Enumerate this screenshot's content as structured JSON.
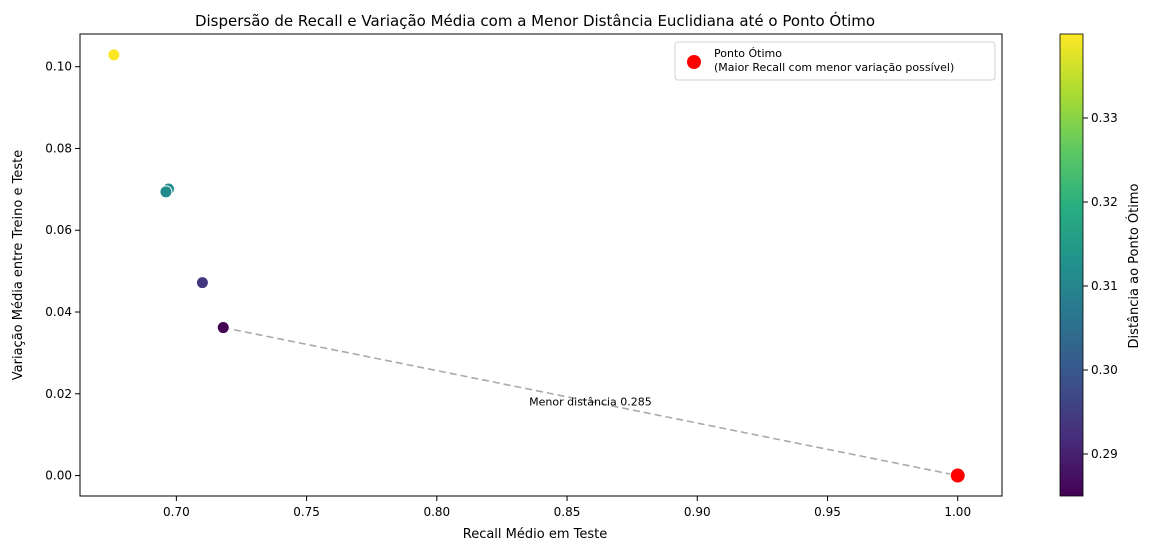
{
  "chart_data": {
    "type": "scatter",
    "title": "Dispersão de Recall e Variação Média com a Menor Distância Euclidiana até o Ponto Ótimo",
    "xlabel": "Recall Médio em Teste",
    "ylabel": "Variação Média entre Treino e Teste",
    "xlim": [
      0.663,
      1.017
    ],
    "ylim": [
      -0.005,
      0.108
    ],
    "x_ticks": [
      0.7,
      0.75,
      0.8,
      0.85,
      0.9,
      0.95,
      1.0
    ],
    "x_tick_labels": [
      "0.70",
      "0.75",
      "0.80",
      "0.85",
      "0.90",
      "0.95",
      "1.00"
    ],
    "y_ticks": [
      0.0,
      0.02,
      0.04,
      0.06,
      0.08,
      0.1
    ],
    "y_tick_labels": [
      "0.00",
      "0.02",
      "0.04",
      "0.06",
      "0.08",
      "0.10"
    ],
    "grid": false,
    "points": [
      {
        "x": 0.676,
        "y": 0.1029,
        "distance": 0.34
      },
      {
        "x": 0.697,
        "y": 0.0701,
        "distance": 0.312
      },
      {
        "x": 0.696,
        "y": 0.0694,
        "distance": 0.311
      },
      {
        "x": 0.71,
        "y": 0.0472,
        "distance": 0.294
      },
      {
        "x": 0.718,
        "y": 0.0362,
        "distance": 0.285
      }
    ],
    "optimal_point": {
      "x": 1.0,
      "y": 0.0,
      "color": "#ff0000"
    },
    "distance_line": {
      "from": [
        0.718,
        0.0362
      ],
      "to": [
        1.0,
        0.0
      ],
      "color": "#aaaaaa",
      "style": "dashed"
    },
    "annotation": {
      "text": "Menor distância 0.285",
      "x": 0.859,
      "y": 0.0181
    },
    "legend": {
      "placement": "top-right",
      "label_line1": "Ponto Ótimo",
      "label_line2": "(Maior Recall com menor variação possível)"
    },
    "colorbar": {
      "label": "Distância ao Ponto Ótimo",
      "colormap": "viridis",
      "range": [
        0.285,
        0.34
      ],
      "ticks": [
        0.29,
        0.3,
        0.31,
        0.32,
        0.33
      ],
      "tick_labels": [
        "0.29",
        "0.30",
        "0.31",
        "0.32",
        "0.33"
      ]
    }
  }
}
